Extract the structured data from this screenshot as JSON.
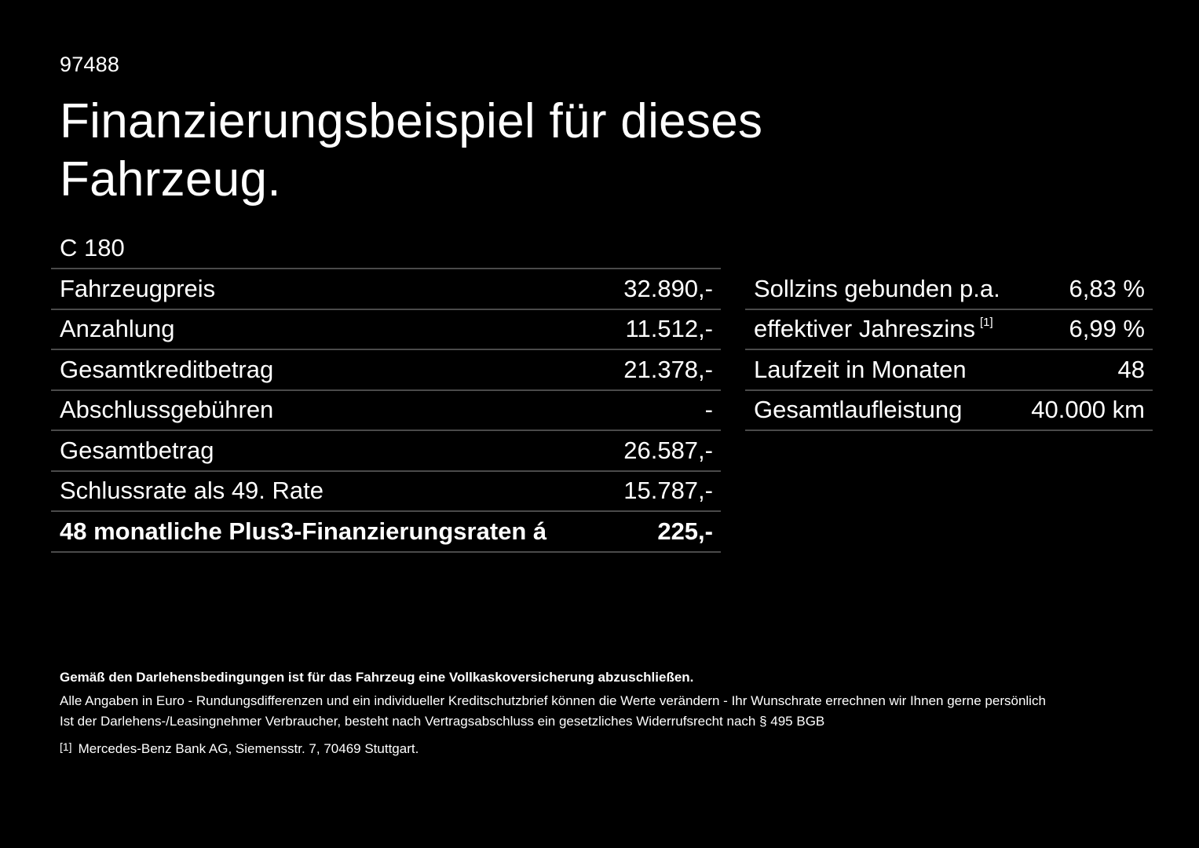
{
  "header": {
    "ref_number": "97488",
    "title": "Finanzierungsbeispiel für dieses Fahrzeug.",
    "model": "C 180"
  },
  "financing_left": [
    {
      "label": "Fahrzeugpreis",
      "value": "32.890,-",
      "bold": false
    },
    {
      "label": "Anzahlung",
      "value": "11.512,-",
      "bold": false
    },
    {
      "label": "Gesamtkreditbetrag",
      "value": "21.378,-",
      "bold": false
    },
    {
      "label": "Abschlussgebühren",
      "value": "-",
      "bold": false
    },
    {
      "label": "Gesamtbetrag",
      "value": "26.587,-",
      "bold": false
    },
    {
      "label": "Schlussrate als 49. Rate",
      "value": "15.787,-",
      "bold": false
    },
    {
      "label": "48 monatliche Plus3-Finanzierungsraten á",
      "value": "225,-",
      "bold": true
    }
  ],
  "financing_right": [
    {
      "label": "Sollzins gebunden p.a.",
      "footnote": "",
      "value": "6,83 %"
    },
    {
      "label": "effektiver Jahreszins",
      "footnote": "[1]",
      "value": "6,99 %"
    },
    {
      "label": "Laufzeit in Monaten",
      "footnote": "",
      "value": "48"
    },
    {
      "label": "Gesamtlaufleistung",
      "footnote": "",
      "value": "40.000 km"
    }
  ],
  "notes": {
    "bold_line": "Gemäß den Darlehensbedingungen ist für das Fahrzeug eine Vollkaskoversicherung abzuschließen.",
    "lines": [
      "Alle Angaben in Euro - Rundungsdifferenzen und ein individueller Kreditschutzbrief können die Werte verändern - Ihr Wunschrate errechnen wir Ihnen gerne persönlich",
      "Ist der Darlehens-/Leasingnehmer Verbraucher, besteht nach Vertragsabschluss ein gesetzliches Widerrufsrecht nach § 495 BGB"
    ],
    "footnote": {
      "marker": "[1]",
      "text": "Mercedes-Benz Bank AG, Siemensstr. 7, 70469 Stuttgart."
    }
  },
  "colors": {
    "background": "#000000",
    "text": "#ffffff",
    "divider": "#4a4a4a"
  }
}
